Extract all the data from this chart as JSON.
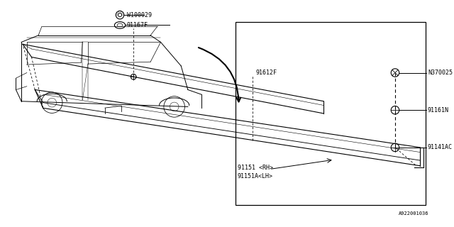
{
  "bg_color": "#ffffff",
  "line_color": "#000000",
  "fig_width": 6.4,
  "fig_height": 3.2,
  "dpi": 100,
  "labels": {
    "91151_rh_lh": "91151 <RH>\n91151A<LH>",
    "91141AC": "91141AC",
    "91161N": "91161N",
    "N370025": "N370025",
    "91612F": "91612F",
    "91167F": "91167F",
    "W100029": "W100029",
    "fig_id": "A922001036"
  }
}
